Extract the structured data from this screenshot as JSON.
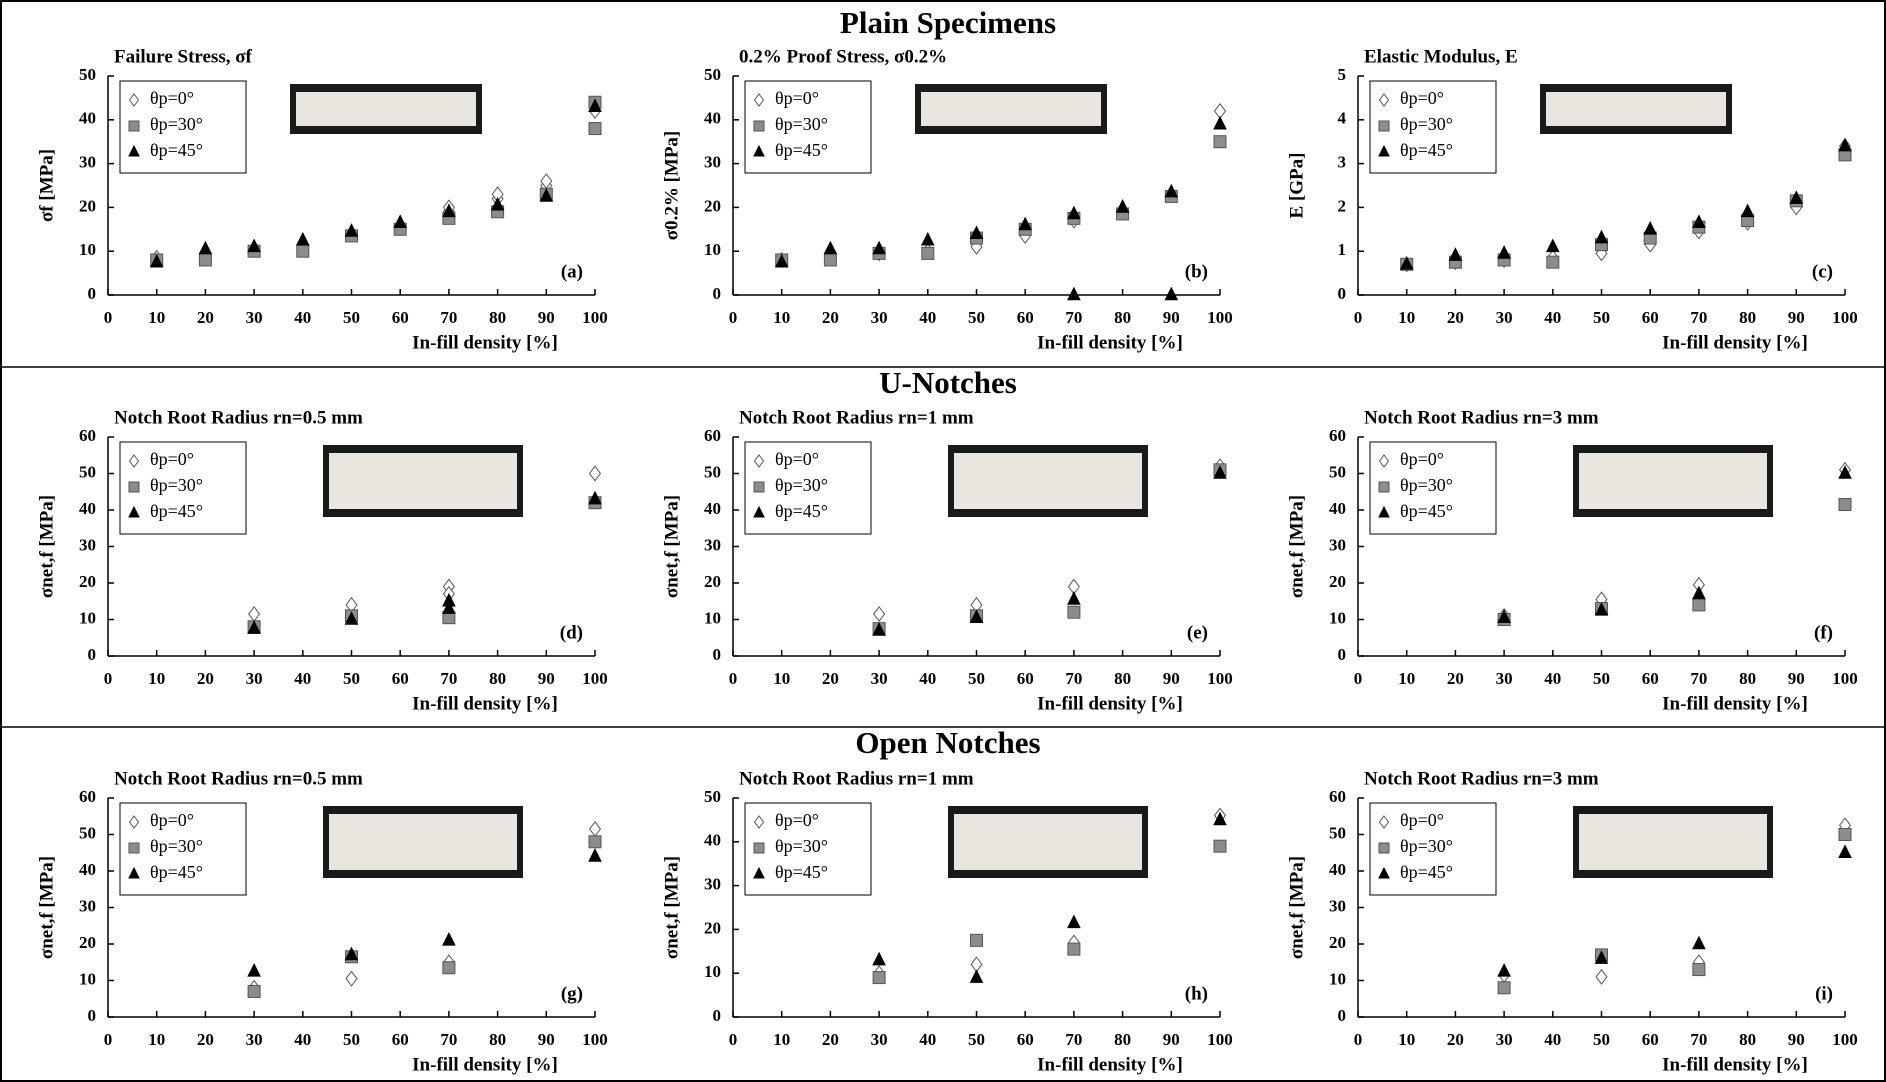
{
  "sections": [
    "Plain Specimens",
    "U-Notches",
    "Open Notches"
  ],
  "chart_data": [
    {
      "type": "scatter",
      "title": "Failure Stress, σf",
      "panel": "(a)",
      "xlabel": "In-fill density [%]",
      "ylabel": "σf [MPa]",
      "xlim": [
        0,
        100
      ],
      "xticks": [
        0,
        10,
        20,
        30,
        40,
        50,
        60,
        70,
        80,
        90,
        100
      ],
      "ylim": [
        0,
        50
      ],
      "yticks": [
        0,
        10,
        20,
        30,
        40,
        50
      ],
      "legend": "upper left",
      "series": [
        {
          "name": "θp=0°",
          "marker": "diamond",
          "color": "#ffffff",
          "edgecolor": "#555555",
          "x": [
            10,
            20,
            30,
            40,
            50,
            60,
            70,
            70,
            80,
            80,
            90,
            90,
            100
          ],
          "values": [
            8.5,
            9,
            10.5,
            11,
            14,
            16,
            19,
            20,
            22,
            23,
            25,
            26,
            42
          ]
        },
        {
          "name": "θp=30°",
          "marker": "square",
          "color": "#8c8c8c",
          "edgecolor": "#555555",
          "x": [
            10,
            20,
            30,
            40,
            50,
            60,
            70,
            80,
            90,
            100,
            100
          ],
          "values": [
            8,
            8,
            10,
            10,
            13.5,
            15,
            17.5,
            19,
            23,
            38,
            44
          ]
        },
        {
          "name": "θp=45°",
          "marker": "triangle",
          "color": "#000000",
          "edgecolor": "#000000",
          "x": [
            10,
            20,
            30,
            40,
            50,
            60,
            70,
            80,
            90,
            100
          ],
          "values": [
            7.5,
            10.5,
            11,
            12.5,
            14.5,
            16.5,
            19,
            20.5,
            22.5,
            43
          ]
        }
      ]
    },
    {
      "type": "scatter",
      "title": "0.2% Proof Stress, σ0.2%",
      "panel": "(b)",
      "xlabel": "In-fill density [%]",
      "ylabel": "σ0.2% [MPa]",
      "xlim": [
        0,
        100
      ],
      "xticks": [
        0,
        10,
        20,
        30,
        40,
        50,
        60,
        70,
        80,
        90,
        100
      ],
      "ylim": [
        0,
        50
      ],
      "yticks": [
        0,
        10,
        20,
        30,
        40,
        50
      ],
      "legend": "upper left",
      "series": [
        {
          "name": "θp=0°",
          "marker": "diamond",
          "color": "#ffffff",
          "edgecolor": "#555555",
          "x": [
            10,
            20,
            30,
            40,
            50,
            60,
            70,
            80,
            90,
            100
          ],
          "values": [
            8,
            8.5,
            9.5,
            10,
            11,
            13.5,
            17,
            19,
            23,
            42
          ]
        },
        {
          "name": "θp=30°",
          "marker": "square",
          "color": "#8c8c8c",
          "edgecolor": "#555555",
          "x": [
            10,
            20,
            30,
            40,
            50,
            60,
            70,
            80,
            90,
            100
          ],
          "values": [
            8,
            8,
            9.5,
            9.5,
            13,
            15,
            17.5,
            18.5,
            22.5,
            35
          ]
        },
        {
          "name": "θp=45°",
          "marker": "triangle",
          "color": "#000000",
          "edgecolor": "#000000",
          "x": [
            10,
            20,
            30,
            40,
            50,
            60,
            70,
            70,
            80,
            90,
            90,
            100
          ],
          "values": [
            7.5,
            10.5,
            10.5,
            12.5,
            14,
            16,
            18.5,
            0,
            20,
            23.5,
            0,
            39
          ]
        }
      ]
    },
    {
      "type": "scatter",
      "title": "Elastic Modulus, E",
      "panel": "(c)",
      "xlabel": "In-fill density [%]",
      "ylabel": "E [GPa]",
      "xlim": [
        0,
        100
      ],
      "xticks": [
        0,
        10,
        20,
        30,
        40,
        50,
        60,
        70,
        80,
        90,
        100
      ],
      "ylim": [
        0,
        5
      ],
      "yticks": [
        0,
        1,
        2,
        3,
        4,
        5
      ],
      "legend": "upper left",
      "series": [
        {
          "name": "θp=0°",
          "marker": "diamond",
          "color": "#ffffff",
          "edgecolor": "#555555",
          "x": [
            10,
            20,
            30,
            40,
            50,
            60,
            70,
            80,
            90,
            100
          ],
          "values": [
            0.7,
            0.75,
            0.8,
            0.85,
            0.95,
            1.15,
            1.45,
            1.65,
            2.0,
            3.4
          ]
        },
        {
          "name": "θp=30°",
          "marker": "square",
          "color": "#8c8c8c",
          "edgecolor": "#555555",
          "x": [
            10,
            20,
            30,
            40,
            50,
            60,
            70,
            80,
            90,
            100
          ],
          "values": [
            0.7,
            0.75,
            0.8,
            0.75,
            1.15,
            1.3,
            1.55,
            1.7,
            2.15,
            3.2
          ]
        },
        {
          "name": "θp=45°",
          "marker": "triangle",
          "color": "#000000",
          "edgecolor": "#000000",
          "x": [
            10,
            20,
            30,
            40,
            50,
            60,
            70,
            80,
            90,
            100
          ],
          "values": [
            0.7,
            0.9,
            0.95,
            1.1,
            1.3,
            1.5,
            1.65,
            1.9,
            2.2,
            3.4
          ]
        }
      ]
    },
    {
      "type": "scatter",
      "title": "Notch Root Radius rn=0.5 mm",
      "panel": "(d)",
      "xlabel": "In-fill density [%]",
      "ylabel": "σnet,f [MPa]",
      "xlim": [
        0,
        100
      ],
      "xticks": [
        0,
        10,
        20,
        30,
        40,
        50,
        60,
        70,
        80,
        90,
        100
      ],
      "ylim": [
        0,
        60
      ],
      "yticks": [
        0,
        10,
        20,
        30,
        40,
        50,
        60
      ],
      "legend": "upper left",
      "series": [
        {
          "name": "θp=0°",
          "marker": "diamond",
          "color": "#ffffff",
          "edgecolor": "#555555",
          "x": [
            30,
            50,
            70,
            70,
            100
          ],
          "values": [
            11.5,
            14,
            19,
            17,
            50
          ]
        },
        {
          "name": "θp=30°",
          "marker": "square",
          "color": "#8c8c8c",
          "edgecolor": "#555555",
          "x": [
            30,
            50,
            70,
            100
          ],
          "values": [
            8,
            11,
            10.5,
            42
          ]
        },
        {
          "name": "θp=45°",
          "marker": "triangle",
          "color": "#000000",
          "edgecolor": "#000000",
          "x": [
            30,
            50,
            70,
            70,
            100
          ],
          "values": [
            7.5,
            10,
            15,
            13,
            43
          ]
        }
      ]
    },
    {
      "type": "scatter",
      "title": "Notch Root Radius rn=1 mm",
      "panel": "(e)",
      "xlabel": "In-fill density [%]",
      "ylabel": "σnet,f [MPa]",
      "xlim": [
        0,
        100
      ],
      "xticks": [
        0,
        10,
        20,
        30,
        40,
        50,
        60,
        70,
        80,
        90,
        100
      ],
      "ylim": [
        0,
        60
      ],
      "yticks": [
        0,
        10,
        20,
        30,
        40,
        50,
        60
      ],
      "legend": "upper left",
      "series": [
        {
          "name": "θp=0°",
          "marker": "diamond",
          "color": "#ffffff",
          "edgecolor": "#555555",
          "x": [
            30,
            50,
            70,
            100
          ],
          "values": [
            11.5,
            14,
            19,
            52
          ]
        },
        {
          "name": "θp=30°",
          "marker": "square",
          "color": "#8c8c8c",
          "edgecolor": "#555555",
          "x": [
            30,
            50,
            70,
            100
          ],
          "values": [
            7.5,
            11,
            12,
            51
          ]
        },
        {
          "name": "θp=45°",
          "marker": "triangle",
          "color": "#000000",
          "edgecolor": "#000000",
          "x": [
            30,
            50,
            70,
            100
          ],
          "values": [
            7,
            10.5,
            15.5,
            50
          ]
        }
      ]
    },
    {
      "type": "scatter",
      "title": "Notch Root Radius rn=3 mm",
      "panel": "(f)",
      "xlabel": "In-fill density [%]",
      "ylabel": "σnet,f [MPa]",
      "xlim": [
        0,
        100
      ],
      "xticks": [
        0,
        10,
        20,
        30,
        40,
        50,
        60,
        70,
        80,
        90,
        100
      ],
      "ylim": [
        0,
        60
      ],
      "yticks": [
        0,
        10,
        20,
        30,
        40,
        50,
        60
      ],
      "legend": "upper left",
      "series": [
        {
          "name": "θp=0°",
          "marker": "diamond",
          "color": "#ffffff",
          "edgecolor": "#555555",
          "x": [
            30,
            50,
            70,
            100
          ],
          "values": [
            11,
            15.5,
            19.5,
            51
          ]
        },
        {
          "name": "θp=30°",
          "marker": "square",
          "color": "#8c8c8c",
          "edgecolor": "#555555",
          "x": [
            30,
            50,
            70,
            100
          ],
          "values": [
            10,
            13,
            14,
            41.5
          ]
        },
        {
          "name": "θp=45°",
          "marker": "triangle",
          "color": "#000000",
          "edgecolor": "#000000",
          "x": [
            30,
            50,
            70,
            100
          ],
          "values": [
            10.5,
            12.5,
            17,
            50
          ]
        }
      ]
    },
    {
      "type": "scatter",
      "title": "Notch Root Radius rn=0.5 mm",
      "panel": "(g)",
      "xlabel": "In-fill density [%]",
      "ylabel": "σnet,f [MPa]",
      "xlim": [
        0,
        100
      ],
      "xticks": [
        0,
        10,
        20,
        30,
        40,
        50,
        60,
        70,
        80,
        90,
        100
      ],
      "ylim": [
        0,
        60
      ],
      "yticks": [
        0,
        10,
        20,
        30,
        40,
        50,
        60
      ],
      "legend": "upper left",
      "series": [
        {
          "name": "θp=0°",
          "marker": "diamond",
          "color": "#ffffff",
          "edgecolor": "#555555",
          "x": [
            30,
            50,
            70,
            100
          ],
          "values": [
            8,
            10.5,
            15,
            51.5
          ]
        },
        {
          "name": "θp=30°",
          "marker": "square",
          "color": "#8c8c8c",
          "edgecolor": "#555555",
          "x": [
            30,
            50,
            70,
            100
          ],
          "values": [
            7,
            16.5,
            13.5,
            48
          ]
        },
        {
          "name": "θp=45°",
          "marker": "triangle",
          "color": "#000000",
          "edgecolor": "#000000",
          "x": [
            30,
            50,
            70,
            100
          ],
          "values": [
            12.5,
            17,
            21,
            44
          ]
        }
      ]
    },
    {
      "type": "scatter",
      "title": "Notch Root Radius rn=1 mm",
      "panel": "(h)",
      "xlabel": "In-fill density [%]",
      "ylabel": "σnet,f [MPa]",
      "xlim": [
        0,
        100
      ],
      "xticks": [
        0,
        10,
        20,
        30,
        40,
        50,
        60,
        70,
        80,
        90,
        100
      ],
      "ylim": [
        0,
        50
      ],
      "yticks": [
        0,
        10,
        20,
        30,
        40,
        50
      ],
      "legend": "upper left",
      "series": [
        {
          "name": "θp=0°",
          "marker": "diamond",
          "color": "#ffffff",
          "edgecolor": "#555555",
          "x": [
            30,
            50,
            70,
            100
          ],
          "values": [
            10,
            12,
            17,
            46
          ]
        },
        {
          "name": "θp=30°",
          "marker": "square",
          "color": "#8c8c8c",
          "edgecolor": "#555555",
          "x": [
            30,
            50,
            70,
            100
          ],
          "values": [
            9,
            17.5,
            15.5,
            39
          ]
        },
        {
          "name": "θp=45°",
          "marker": "triangle",
          "color": "#000000",
          "edgecolor": "#000000",
          "x": [
            30,
            50,
            70,
            100
          ],
          "values": [
            13,
            9,
            21.5,
            45
          ]
        }
      ]
    },
    {
      "type": "scatter",
      "title": "Notch Root Radius rn=3 mm",
      "panel": "(i)",
      "xlabel": "In-fill density [%]",
      "ylabel": "σnet,f [MPa]",
      "xlim": [
        0,
        100
      ],
      "xticks": [
        0,
        10,
        20,
        30,
        40,
        50,
        60,
        70,
        80,
        90,
        100
      ],
      "ylim": [
        0,
        60
      ],
      "yticks": [
        0,
        10,
        20,
        30,
        40,
        50,
        60
      ],
      "legend": "upper left",
      "series": [
        {
          "name": "θp=0°",
          "marker": "diamond",
          "color": "#ffffff",
          "edgecolor": "#555555",
          "x": [
            30,
            50,
            70,
            100
          ],
          "values": [
            11.5,
            11,
            15,
            52.5
          ]
        },
        {
          "name": "θp=30°",
          "marker": "square",
          "color": "#8c8c8c",
          "edgecolor": "#555555",
          "x": [
            30,
            50,
            70,
            100
          ],
          "values": [
            8,
            17,
            13,
            50
          ]
        },
        {
          "name": "θp=45°",
          "marker": "triangle",
          "color": "#000000",
          "edgecolor": "#000000",
          "x": [
            30,
            50,
            70,
            100
          ],
          "values": [
            12.5,
            16,
            20,
            45
          ]
        }
      ]
    }
  ]
}
